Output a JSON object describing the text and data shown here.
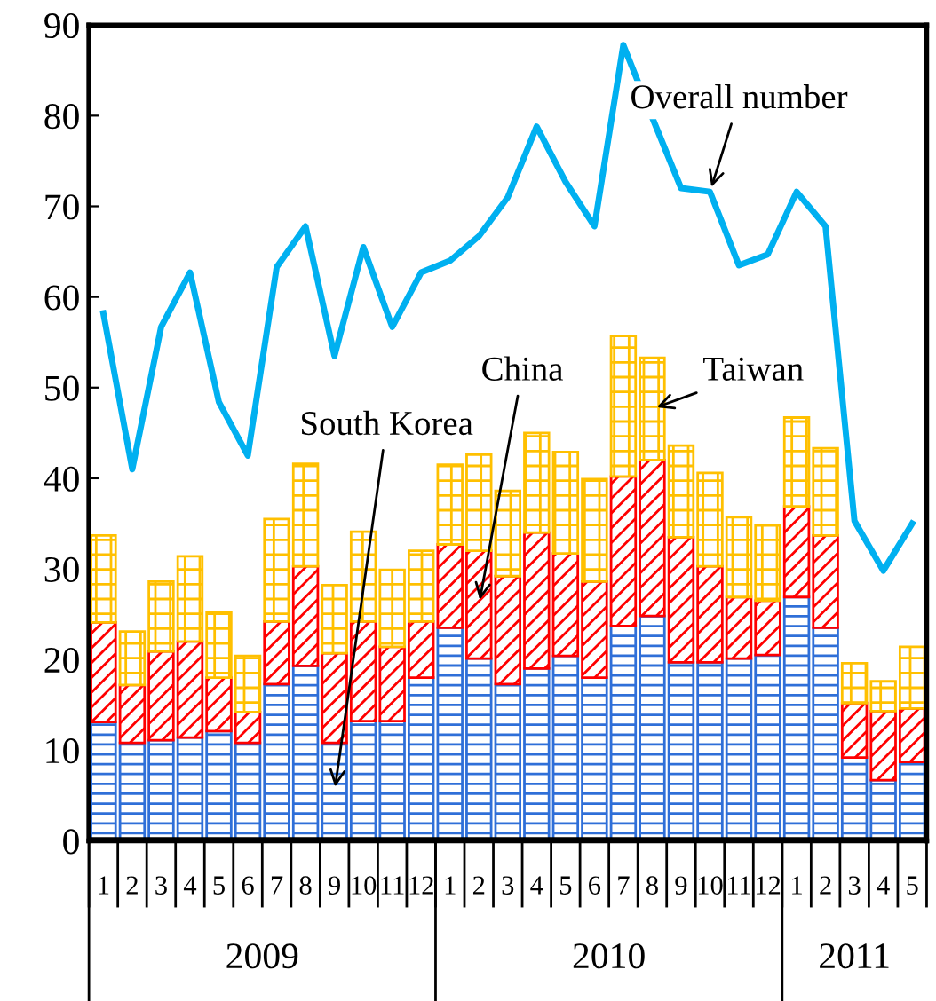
{
  "chart_data": {
    "type": "bar",
    "stacked": true,
    "categories": [
      "1",
      "2",
      "3",
      "4",
      "5",
      "6",
      "7",
      "8",
      "9",
      "10",
      "11",
      "12",
      "1",
      "2",
      "3",
      "4",
      "5",
      "6",
      "7",
      "8",
      "9",
      "10",
      "11",
      "12",
      "1",
      "2",
      "3",
      "4",
      "5"
    ],
    "annotations": [
      "2009",
      "2010",
      "2011"
    ],
    "series": [
      {
        "name": "South Korea",
        "color": "#2f6fd8",
        "values": [
          13.1,
          10.8,
          11.1,
          11.4,
          12.1,
          10.8,
          17.3,
          19.3,
          10.8,
          13.2,
          13.2,
          18.0,
          23.5,
          20.1,
          17.3,
          19.0,
          20.4,
          18.0,
          23.7,
          24.8,
          19.7,
          19.7,
          20.1,
          20.5,
          26.9,
          23.5,
          9.2,
          6.7,
          8.7
        ]
      },
      {
        "name": "China",
        "color": "#ff0000",
        "values": [
          11.0,
          6.4,
          9.8,
          10.6,
          5.9,
          3.4,
          6.9,
          11.0,
          9.9,
          11.0,
          8.2,
          6.2,
          9.2,
          11.9,
          11.9,
          15.0,
          11.3,
          10.6,
          16.5,
          17.2,
          13.8,
          10.6,
          6.8,
          6.0,
          10.0,
          10.2,
          6.0,
          7.6,
          5.9
        ]
      },
      {
        "name": "Taiwan",
        "color": "#ffc000",
        "values": [
          9.6,
          5.9,
          7.7,
          9.4,
          7.2,
          6.2,
          11.3,
          11.3,
          7.5,
          9.9,
          8.5,
          7.8,
          8.8,
          10.6,
          9.4,
          11.0,
          11.2,
          11.3,
          15.5,
          11.3,
          10.1,
          10.3,
          8.8,
          8.3,
          9.8,
          9.6,
          4.4,
          3.3,
          6.8
        ]
      },
      {
        "name": "Overall number",
        "type": "line",
        "color": "#00b0f0",
        "values": [
          58.2,
          41.0,
          56.7,
          62.7,
          48.4,
          42.5,
          63.3,
          67.8,
          53.5,
          65.5,
          56.7,
          62.7,
          64.0,
          66.7,
          71.0,
          78.8,
          72.7,
          67.8,
          87.8,
          79.8,
          72.0,
          71.6,
          63.5,
          64.7,
          71.6,
          67.8,
          35.3,
          29.8,
          35.0
        ]
      }
    ],
    "ylim": [
      0,
      90
    ],
    "yticks": [
      0,
      10,
      20,
      30,
      40,
      50,
      60,
      70,
      80,
      90
    ],
    "grid": false,
    "legend": false,
    "marker": "none",
    "line_style": "solid"
  }
}
